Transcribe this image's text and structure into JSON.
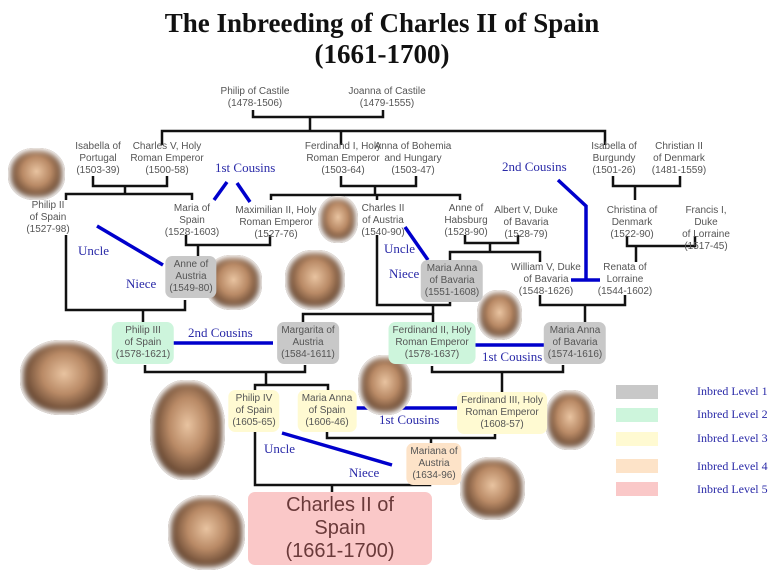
{
  "title": "The Inbreeding of Charles II of Spain",
  "subtitle": "(1661-1700)",
  "nodes": {
    "philip_castile": "Philip of Castile\n(1478-1506)",
    "joanna_castile": "Joanna of Castile\n(1479-1555)",
    "isabella_portugal": "Isabella of\nPortugal\n(1503-39)",
    "charles_v": "Charles V, Holy\nRoman Emperor\n(1500-58)",
    "ferdinand_i": "Ferdinand I, Holy\nRoman Emperor\n(1503-64)",
    "anna_bohemia": "Anna of Bohemia\nand Hungary\n(1503-47)",
    "isabella_burgundy": "Isabella of\nBurgundy\n(1501-26)",
    "christian_ii": "Christian II\nof Denmark\n(1481-1559)",
    "philip_ii": "Philip II\nof Spain\n(1527-98)",
    "maria_spain": "Maria of\nSpain\n(1528-1603)",
    "maximilian_ii": "Maximilian II, Holy\nRoman Emperor\n(1527-76)",
    "charles_ii_austria": "Charles II\nof Austria\n(1540-90)",
    "anne_habsburg": "Anne of\nHabsburg\n(1528-90)",
    "albert_v": "Albert V, Duke\nof Bavaria\n(1528-79)",
    "christina_denmark": "Christina of\nDenmark\n(1522-90)",
    "francis_i": "Francis I, Duke\nof Lorraine\n(1517-45)",
    "anne_austria": "Anne of\nAustria\n(1549-80)",
    "maria_anna_bavaria_1": "Maria Anna\nof Bavaria\n(1551-1608)",
    "william_v": "William V, Duke\nof Bavaria\n(1548-1626)",
    "renata_lorraine": "Renata of\nLorraine\n(1544-1602)",
    "philip_iii": "Philip III\nof Spain\n(1578-1621)",
    "margarita_austria": "Margarita of\nAustria\n(1584-1611)",
    "ferdinand_ii": "Ferdinand II, Holy\nRoman Emperor\n(1578-1637)",
    "maria_anna_bavaria_2": "Maria Anna\nof Bavaria\n(1574-1616)",
    "philip_iv": "Philip IV\nof Spain\n(1605-65)",
    "maria_anna_spain": "Maria Anna\nof Spain\n(1606-46)",
    "ferdinand_iii": "Ferdinand III, Holy\nRoman Emperor\n(1608-57)",
    "mariana_austria": "Mariana of\nAustria\n(1634-96)",
    "charles_ii_spain": "Charles II of Spain\n(1661-1700)"
  },
  "relations": {
    "first_cousins_top": "1st Cousins",
    "second_cousins_top": "2nd Cousins",
    "uncle_left": "Uncle",
    "niece_left": "Niece",
    "uncle_mid": "Uncle",
    "niece_mid": "Niece",
    "second_cousins_mid": "2nd Cousins",
    "first_cousins_mid": "1st Cousins",
    "first_cousins_low": "1st Cousins",
    "uncle_low": "Uncle",
    "niece_low": "Niece"
  },
  "legend": [
    {
      "label": "Inbred Level 1",
      "color": "#c8c8c8"
    },
    {
      "label": "Inbred Level 2",
      "color": "#cdf5dc"
    },
    {
      "label": "Inbred Level 3",
      "color": "#fffad2"
    },
    {
      "label": "Inbred Level 4",
      "color": "#fde3c8"
    },
    {
      "label": "Inbred Level 5",
      "color": "#fac8c8"
    }
  ],
  "colors": {
    "relation_line": "#0000cc",
    "family_line": "#111111",
    "relation_text": "#2a2aa8"
  }
}
